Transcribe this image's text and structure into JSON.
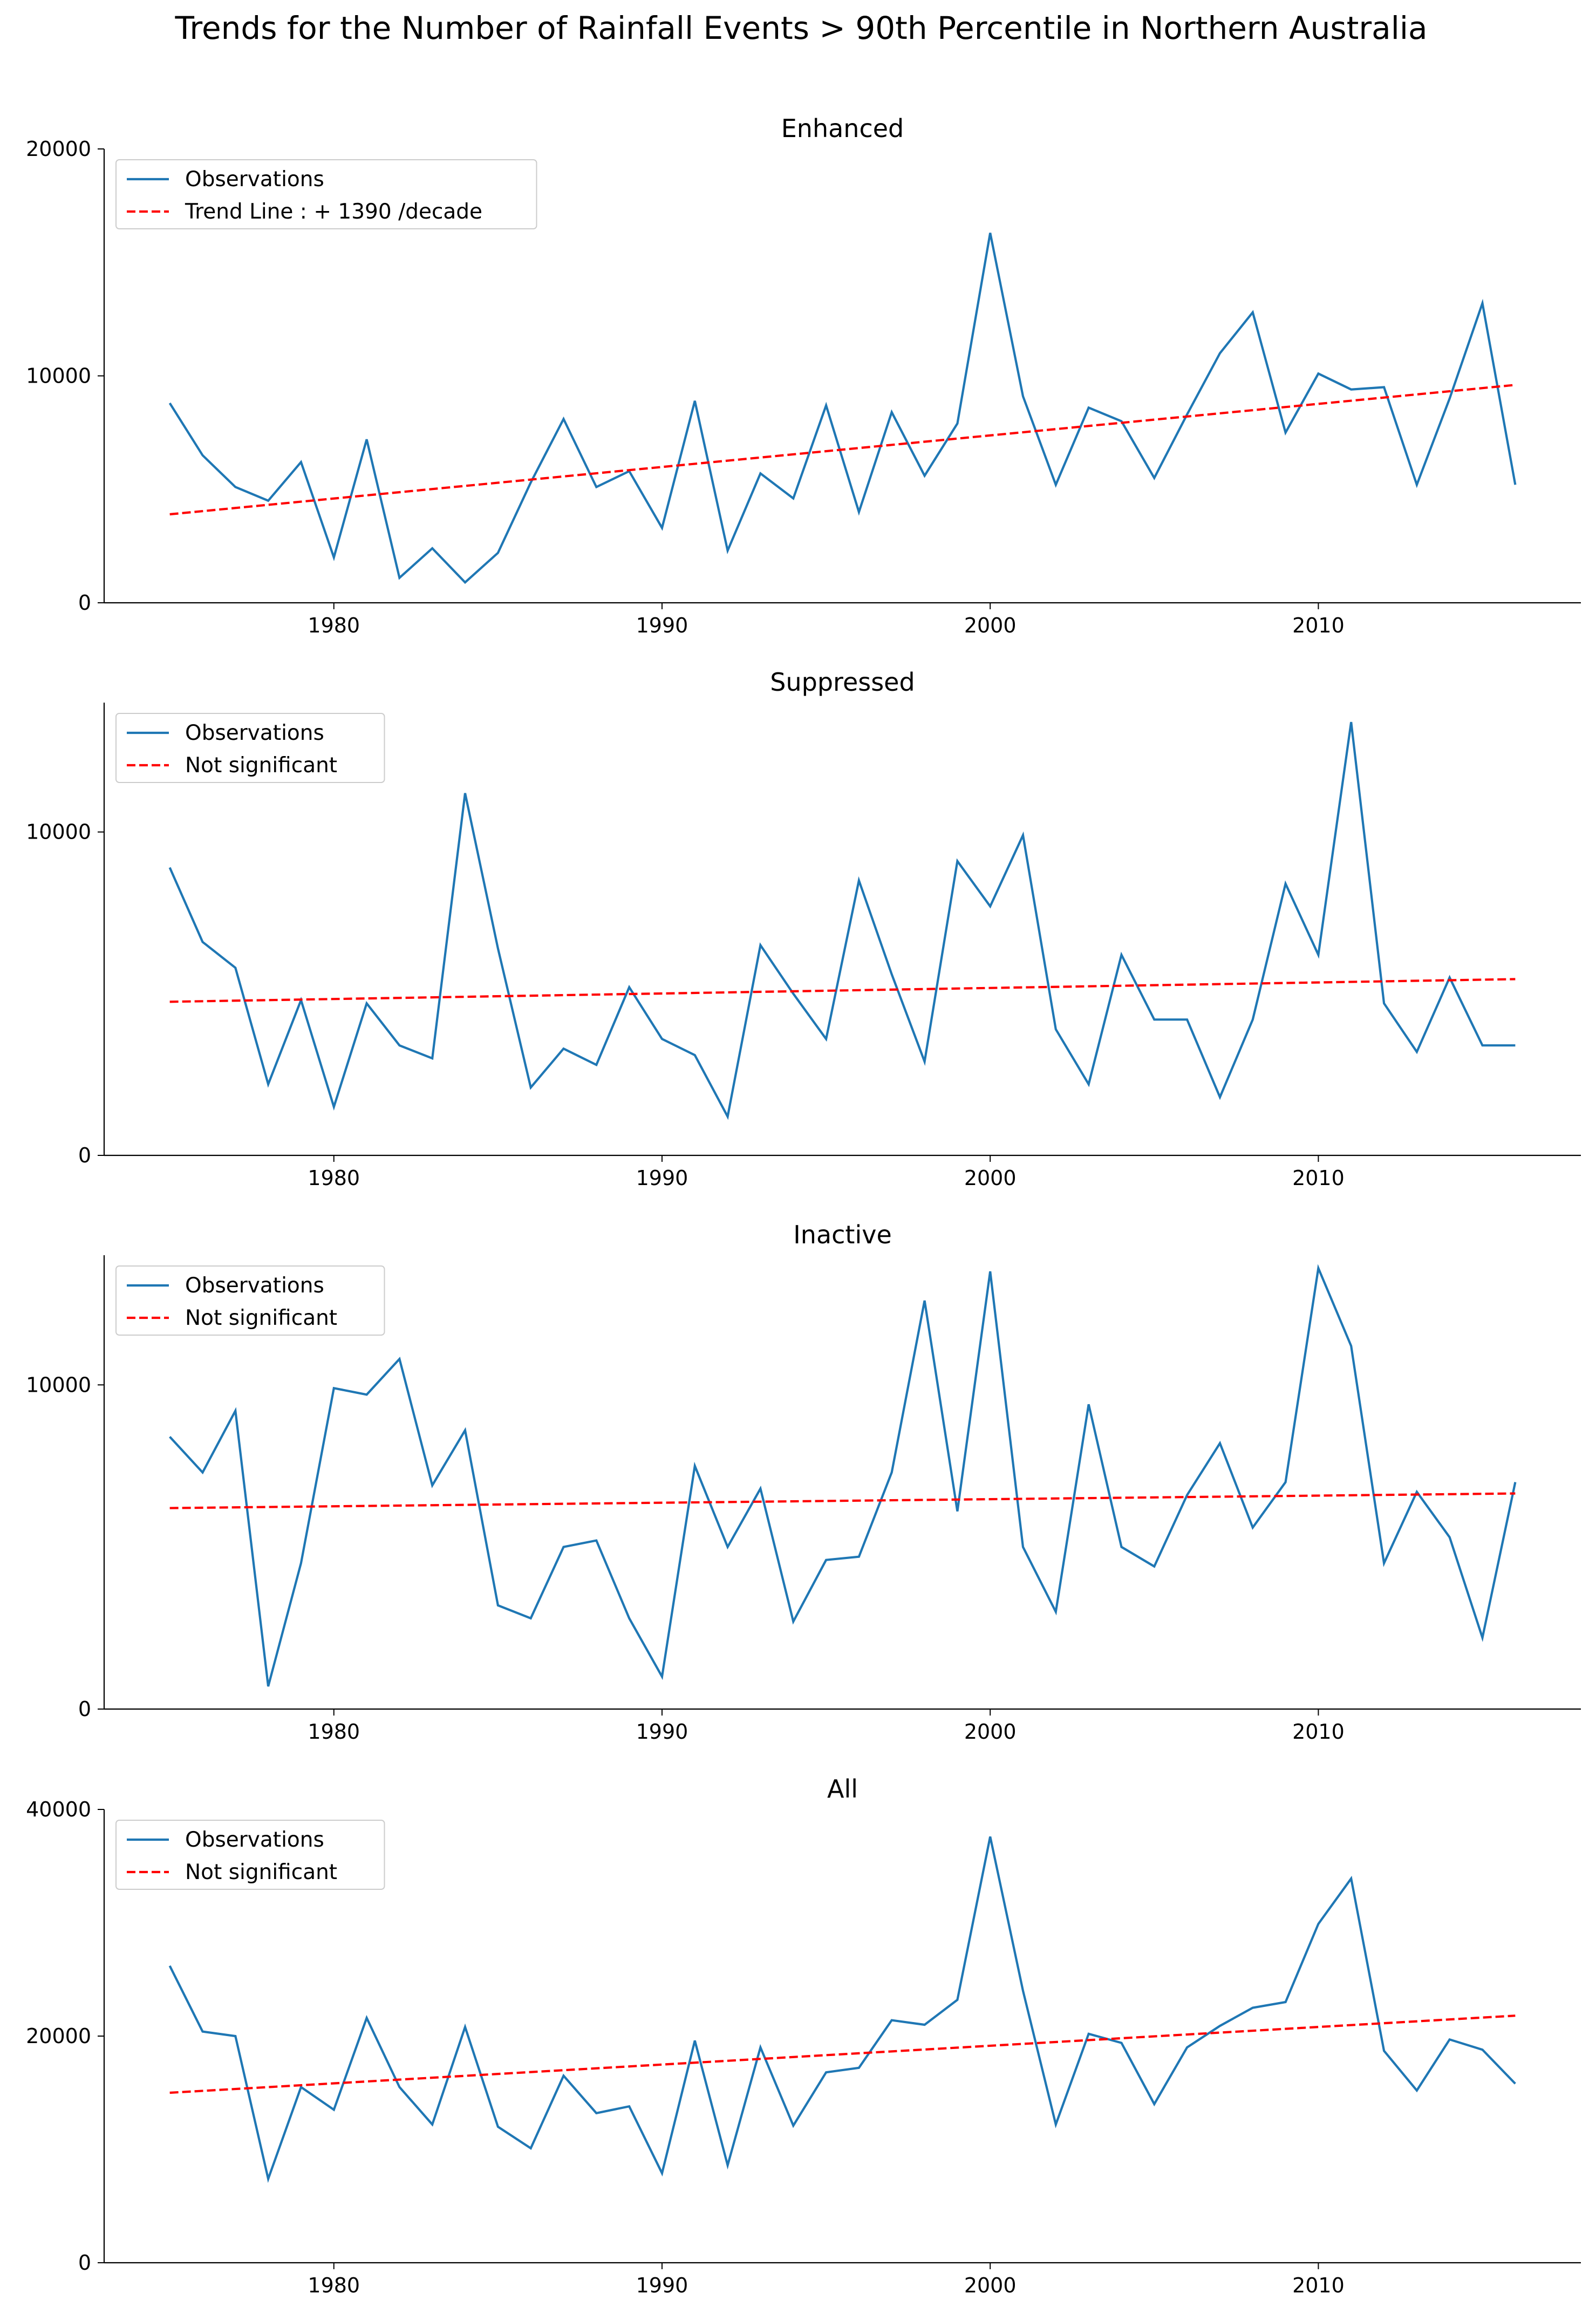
{
  "title": "Trends for the Number of Rainfall Events > 90th Percentile in Northern Australia",
  "colors": {
    "observations": "#1f77b4",
    "trend": "#ff0000"
  },
  "chart_data": [
    {
      "type": "line",
      "title": "Enhanced",
      "xlabel": "",
      "ylabel": "",
      "xlim": [
        1973,
        2018
      ],
      "ylim": [
        0,
        20000
      ],
      "xticks": [
        1980,
        1990,
        2000,
        2010
      ],
      "yticks": [
        0,
        10000,
        20000
      ],
      "grid": false,
      "legend_position": "top-left",
      "x": [
        1975,
        1976,
        1977,
        1978,
        1979,
        1980,
        1981,
        1982,
        1983,
        1984,
        1985,
        1986,
        1987,
        1988,
        1989,
        1990,
        1991,
        1992,
        1993,
        1994,
        1995,
        1996,
        1997,
        1998,
        1999,
        2000,
        2001,
        2002,
        2003,
        2004,
        2005,
        2006,
        2007,
        2008,
        2009,
        2010,
        2011,
        2012,
        2013,
        2014,
        2015,
        2016
      ],
      "series": [
        {
          "name": "Observations",
          "style": "solid",
          "values": [
            8800,
            6500,
            5100,
            4500,
            6200,
            2000,
            7200,
            1100,
            2400,
            900,
            2200,
            5300,
            8100,
            5100,
            5800,
            3300,
            8900,
            2300,
            5700,
            4600,
            8700,
            4000,
            8400,
            5600,
            7900,
            16300,
            9100,
            5200,
            8600,
            8000,
            5500,
            8300,
            11000,
            12800,
            7500,
            10100,
            9400,
            9500,
            5200,
            9000,
            13200,
            5200
          ]
        },
        {
          "name": "Trend Line : + 1390 /decade",
          "style": "dashed",
          "trend": {
            "x": [
              1975,
              2016
            ],
            "y": [
              3900,
              9600
            ]
          }
        }
      ]
    },
    {
      "type": "line",
      "title": "Suppressed",
      "xlabel": "",
      "ylabel": "",
      "xlim": [
        1973,
        2018
      ],
      "ylim": [
        0,
        14000
      ],
      "xticks": [
        1980,
        1990,
        2000,
        2010
      ],
      "yticks": [
        0,
        10000
      ],
      "grid": false,
      "legend_position": "top-left",
      "x": [
        1975,
        1976,
        1977,
        1978,
        1979,
        1980,
        1981,
        1982,
        1983,
        1984,
        1985,
        1986,
        1987,
        1988,
        1989,
        1990,
        1991,
        1992,
        1993,
        1994,
        1995,
        1996,
        1997,
        1998,
        1999,
        2000,
        2001,
        2002,
        2003,
        2004,
        2005,
        2006,
        2007,
        2008,
        2009,
        2010,
        2011,
        2012,
        2013,
        2014,
        2015,
        2016
      ],
      "series": [
        {
          "name": "Observations",
          "style": "solid",
          "values": [
            8900,
            6600,
            5800,
            2200,
            4800,
            1500,
            4700,
            3400,
            3000,
            11200,
            6400,
            2100,
            3300,
            2800,
            5200,
            3600,
            3100,
            1200,
            6500,
            5000,
            3600,
            8500,
            5600,
            2900,
            9100,
            7700,
            9900,
            3900,
            2200,
            6200,
            4200,
            4200,
            1800,
            4200,
            8400,
            6200,
            13400,
            4700,
            3200,
            5500,
            3400,
            3400
          ]
        },
        {
          "name": "Not significant",
          "style": "dashed",
          "trend": {
            "x": [
              1975,
              2016
            ],
            "y": [
              4750,
              5450
            ]
          }
        }
      ]
    },
    {
      "type": "line",
      "title": "Inactive",
      "xlabel": "",
      "ylabel": "",
      "xlim": [
        1973,
        2018
      ],
      "ylim": [
        0,
        14000
      ],
      "xticks": [
        1980,
        1990,
        2000,
        2010
      ],
      "yticks": [
        0,
        10000
      ],
      "grid": false,
      "legend_position": "top-left",
      "x": [
        1975,
        1976,
        1977,
        1978,
        1979,
        1980,
        1981,
        1982,
        1983,
        1984,
        1985,
        1986,
        1987,
        1988,
        1989,
        1990,
        1991,
        1992,
        1993,
        1994,
        1995,
        1996,
        1997,
        1998,
        1999,
        2000,
        2001,
        2002,
        2003,
        2004,
        2005,
        2006,
        2007,
        2008,
        2009,
        2010,
        2011,
        2012,
        2013,
        2014,
        2015,
        2016
      ],
      "series": [
        {
          "name": "Observations",
          "style": "solid",
          "values": [
            8400,
            7300,
            9200,
            700,
            4500,
            9900,
            9700,
            10800,
            6900,
            8600,
            3200,
            2800,
            5000,
            5200,
            2800,
            1000,
            7500,
            5000,
            6800,
            2700,
            4600,
            4700,
            7300,
            12600,
            6100,
            13500,
            5000,
            3000,
            9400,
            5000,
            4400,
            6600,
            8200,
            5600,
            7000,
            13600,
            11200,
            4500,
            6700,
            5300,
            2200,
            7000
          ]
        },
        {
          "name": "Not significant",
          "style": "dashed",
          "trend": {
            "x": [
              1975,
              2016
            ],
            "y": [
              6200,
              6650
            ]
          }
        }
      ]
    },
    {
      "type": "line",
      "title": "All",
      "xlabel": "",
      "ylabel": "",
      "xlim": [
        1973,
        2018
      ],
      "ylim": [
        0,
        40000
      ],
      "xticks": [
        1980,
        1990,
        2000,
        2010
      ],
      "yticks": [
        0,
        20000,
        40000
      ],
      "grid": false,
      "legend_position": "top-left",
      "x": [
        1975,
        1976,
        1977,
        1978,
        1979,
        1980,
        1981,
        1982,
        1983,
        1984,
        1985,
        1986,
        1987,
        1988,
        1989,
        1990,
        1991,
        1992,
        1993,
        1994,
        1995,
        1996,
        1997,
        1998,
        1999,
        2000,
        2001,
        2002,
        2003,
        2004,
        2005,
        2006,
        2007,
        2008,
        2009,
        2010,
        2011,
        2012,
        2013,
        2014,
        2015,
        2016
      ],
      "series": [
        {
          "name": "Observations",
          "style": "solid",
          "values": [
            26200,
            20400,
            20000,
            7400,
            15500,
            13500,
            21600,
            15500,
            12200,
            20800,
            12000,
            10100,
            16500,
            13200,
            13800,
            7900,
            19600,
            8600,
            19000,
            12100,
            16800,
            17200,
            21400,
            21000,
            23200,
            37600,
            24000,
            12200,
            20200,
            19400,
            14000,
            19000,
            20900,
            22500,
            23000,
            29900,
            33900,
            18700,
            15200,
            19700,
            18800,
            15800
          ]
        },
        {
          "name": "Not significant",
          "style": "dashed",
          "trend": {
            "x": [
              1975,
              2016
            ],
            "y": [
              15000,
              21800
            ]
          }
        }
      ]
    }
  ]
}
